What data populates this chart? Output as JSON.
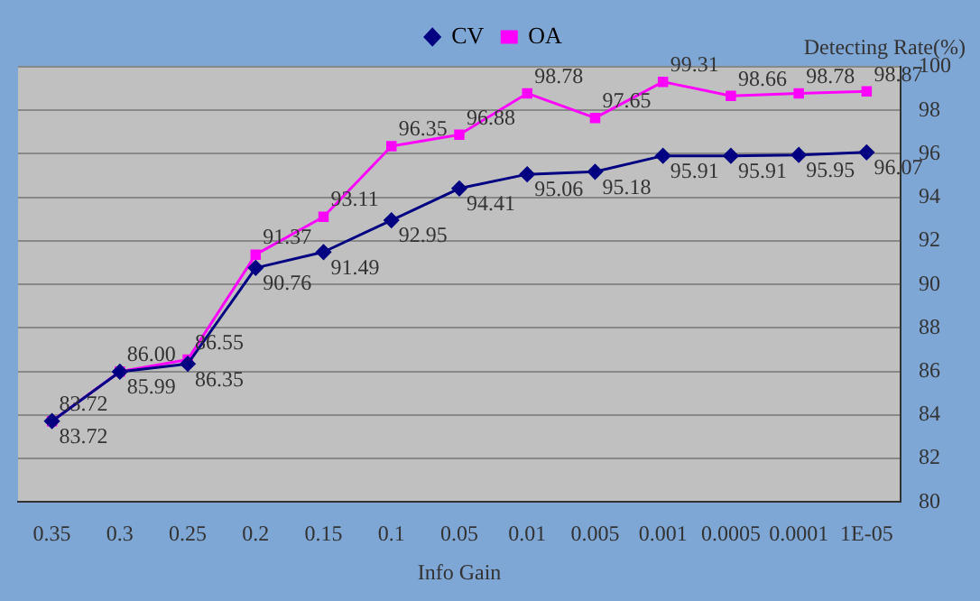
{
  "chart_data": {
    "type": "line",
    "xlabel": "Info Gain",
    "ylabel": "Detecting Rate(%)",
    "categories": [
      "0.35",
      "0.3",
      "0.25",
      "0.2",
      "0.15",
      "0.1",
      "0.05",
      "0.01",
      "0.005",
      "0.001",
      "0.0005",
      "0.0001",
      "1E-05"
    ],
    "series": [
      {
        "name": "CV",
        "color": "#000080",
        "marker": "diamond",
        "values": [
          83.72,
          85.99,
          86.35,
          90.76,
          91.49,
          92.95,
          94.41,
          95.06,
          95.18,
          95.91,
          95.91,
          95.95,
          96.07
        ]
      },
      {
        "name": "OA",
        "color": "#ff00ff",
        "marker": "square",
        "values": [
          83.72,
          86.0,
          86.55,
          91.37,
          93.11,
          96.35,
          96.88,
          98.78,
          97.65,
          99.31,
          98.66,
          98.78,
          98.87
        ],
        "value_labels": [
          "83.72",
          "86.00",
          "86.55",
          "91.37",
          "93.11",
          "96.35",
          "96.88",
          "98.78",
          "97.65",
          "99.31",
          "98.66",
          "98.78",
          "98.87"
        ]
      }
    ],
    "ylim": [
      80,
      100
    ],
    "yticks": [
      80,
      82,
      84,
      86,
      88,
      90,
      92,
      94,
      96,
      98,
      100
    ],
    "grid": "y",
    "legend": "top",
    "data_labels": true
  }
}
